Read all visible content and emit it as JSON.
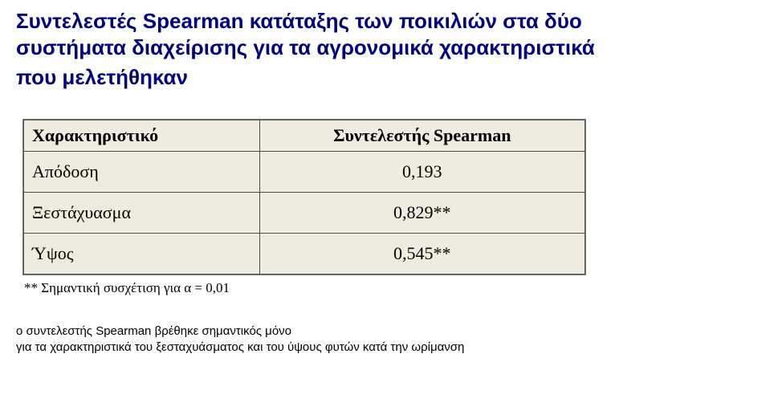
{
  "title": {
    "line1": "Συντελεστές Spearman κατάταξης των ποικιλιών στα δύο",
    "line2": "συστήματα διαχείρισης για τα αγρονομικά χαρακτηριστικά",
    "line3": "που μελετήθηκαν"
  },
  "table": {
    "headers": {
      "col1": "Χαρακτηριστικό",
      "col2": "Συντελεστής Spearman"
    },
    "rows": [
      {
        "label": "Απόδοση",
        "value": "0,193"
      },
      {
        "label": "Ξεστάχυασμα",
        "value": "0,829**"
      },
      {
        "label": "Ύψος",
        "value": "0,545**"
      }
    ],
    "footnote": "** Σημαντική συσχέτιση για α = 0,01",
    "styling": {
      "background_color": "#efebde",
      "border_color": "#7f7f7f",
      "inner_border_color": "#4d4d4d",
      "header_fontsize": 22,
      "cell_fontsize": 22,
      "font_family": "Times New Roman",
      "header_align": "center",
      "label_align": "left",
      "value_align": "center"
    }
  },
  "conclusion": {
    "line1": "ο συντελεστής Spearman βρέθηκε σημαντικός μόνο",
    "line2": "για τα χαρακτηριστικά του ξεσταχυάσματος και του ύψους φυτών κατά την ωρίμανση"
  },
  "colors": {
    "title_color": "#000080",
    "text_color": "#000000",
    "page_background": "#ffffff"
  }
}
